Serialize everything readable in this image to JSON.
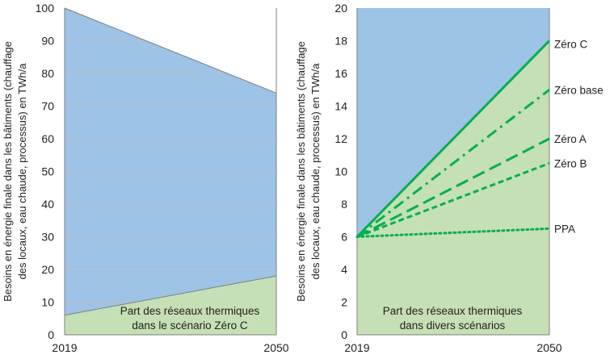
{
  "chart_data": [
    {
      "type": "area",
      "x": [
        2019,
        2050
      ],
      "xtick_labels": [
        "2019",
        "2050"
      ],
      "ylim": [
        0,
        100
      ],
      "yticks": [
        0,
        10,
        20,
        30,
        40,
        50,
        60,
        70,
        80,
        90,
        100
      ],
      "ylabel_lines": [
        "Besoins en énergie finale dans les bâtiments (chauffage",
        "des locaux, eau chaude, processus) en TWh/a"
      ],
      "series": [
        {
          "values": [
            100,
            74
          ],
          "color": "#9dc3e6"
        },
        {
          "values": [
            6,
            18
          ],
          "color": "#c5e0b4"
        }
      ],
      "annotation_lines": [
        "Part des réseaux thermiques",
        "dans le scénario Zéro C"
      ],
      "grid": true
    },
    {
      "type": "line",
      "x": [
        2019,
        2050
      ],
      "xtick_labels": [
        "2019",
        "2050"
      ],
      "ylim": [
        0,
        20
      ],
      "yticks": [
        0,
        2,
        4,
        6,
        8,
        10,
        12,
        14,
        16,
        18,
        20
      ],
      "ylabel_lines": [
        "Besoins en énergie finale dans les bâtiments (chauffage",
        "des locaux, eau chaude, processus) en TWh/a"
      ],
      "background_color": "#9dc3e6",
      "fill_color": "#c5e0b4",
      "line_color": "#00b050",
      "series": [
        {
          "name": "Zéro C",
          "values": [
            6,
            18
          ],
          "dash": "solid"
        },
        {
          "name": "Zéro base",
          "values": [
            6,
            15
          ],
          "dash": "dashdot"
        },
        {
          "name": "Zéro A",
          "values": [
            6,
            12
          ],
          "dash": "longdash"
        },
        {
          "name": "Zéro B",
          "values": [
            6,
            10.5
          ],
          "dash": "dash"
        },
        {
          "name": "PPA",
          "values": [
            6,
            6.5
          ],
          "dash": "dot"
        }
      ],
      "annotation_lines": [
        "Part des réseaux thermiques",
        "dans divers scénarios"
      ],
      "grid": false
    }
  ]
}
